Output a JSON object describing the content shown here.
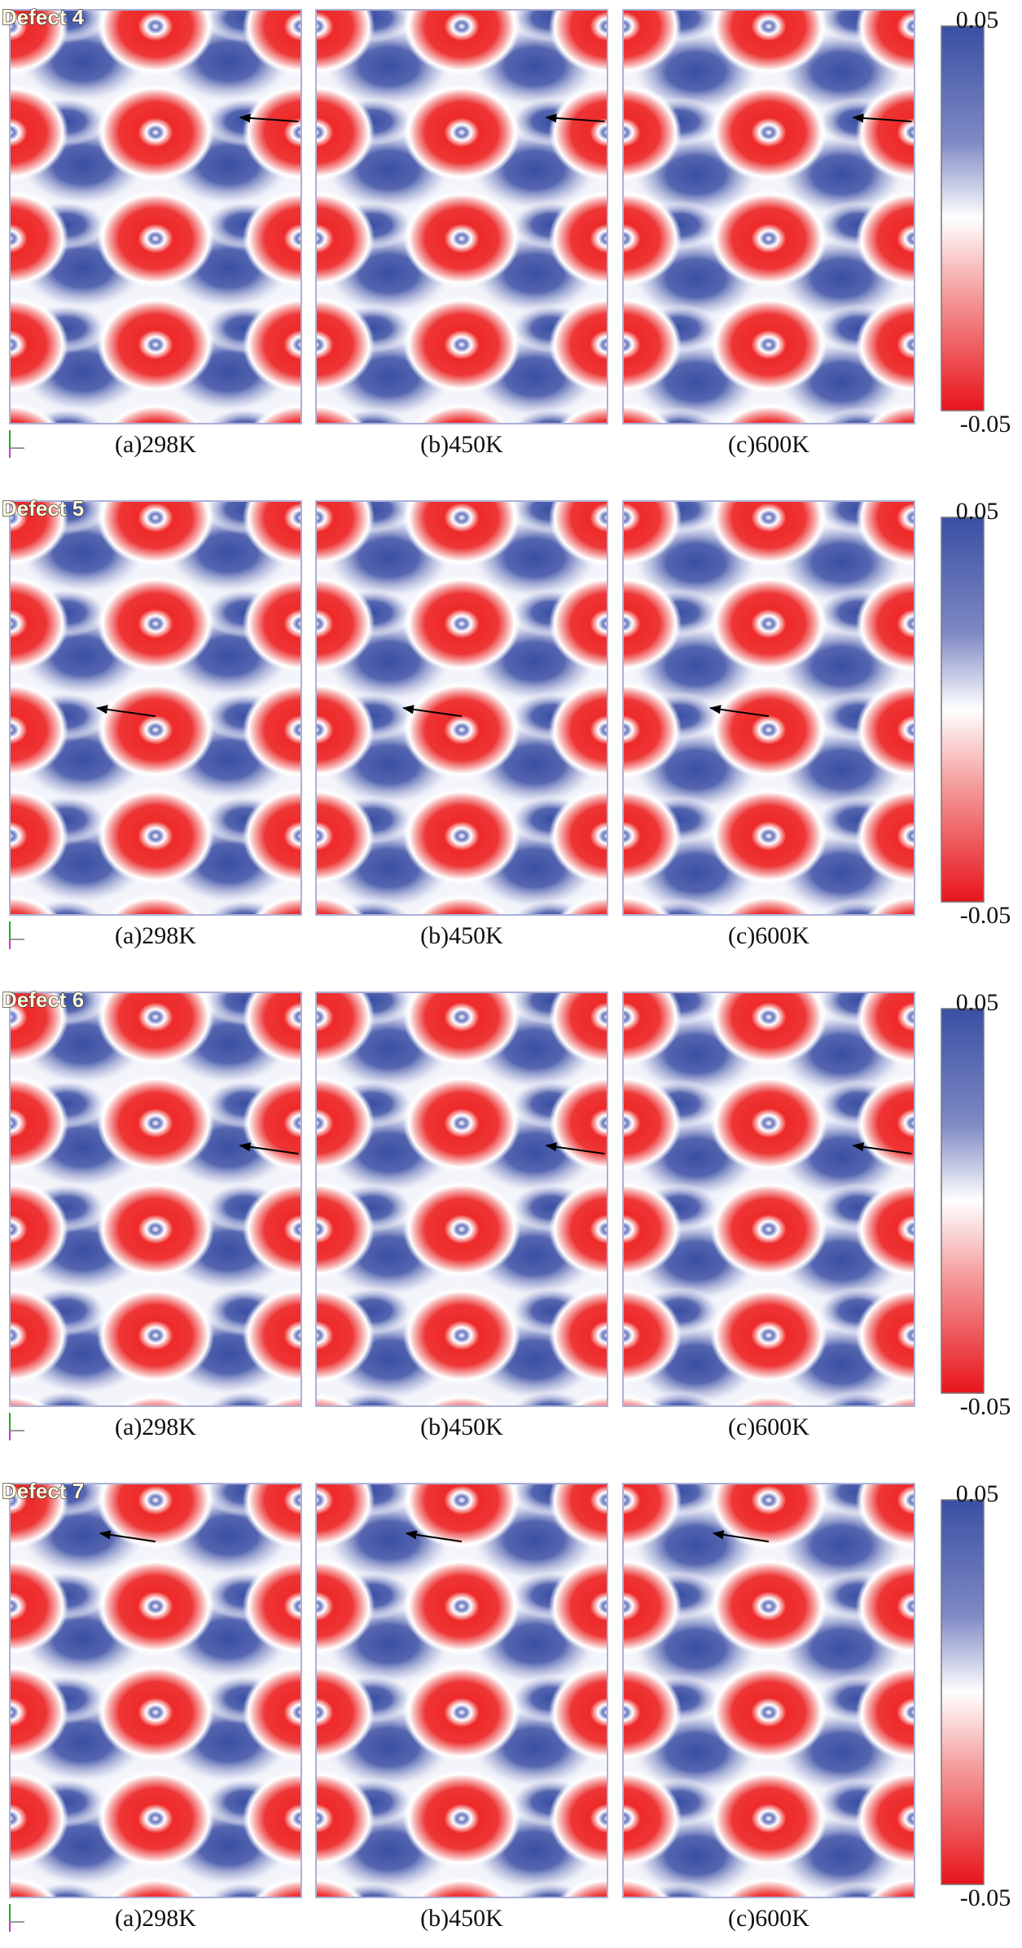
{
  "rows": [
    {
      "title": "Defect 4",
      "panels": [
        "(a)298K",
        "(b)450K",
        "(c)600K"
      ],
      "colorbar": {
        "max": "0.05",
        "min": "-0.05"
      }
    },
    {
      "title": "Defect 5",
      "panels": [
        "(a)298K",
        "(b)450K",
        "(c)600K"
      ],
      "colorbar": {
        "max": "0.05",
        "min": "-0.05"
      }
    },
    {
      "title": "Defect 6",
      "panels": [
        "(a)298K",
        "(b)450K",
        "(c)600K"
      ],
      "colorbar": {
        "max": "0.05",
        "min": "-0.05"
      }
    },
    {
      "title": "Defect 7",
      "panels": [
        "(a)298K",
        "(b)450K",
        "(c)600K"
      ],
      "colorbar": {
        "max": "0.05",
        "min": "-0.05"
      }
    }
  ]
}
